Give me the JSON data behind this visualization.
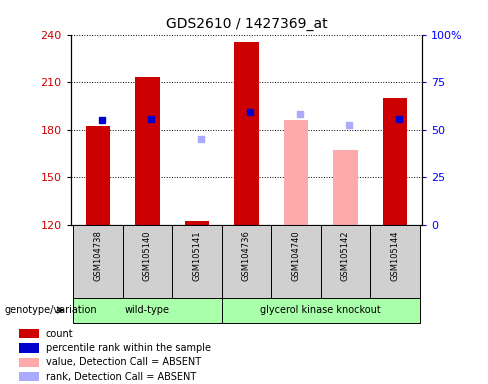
{
  "title": "GDS2610 / 1427369_at",
  "samples": [
    "GSM104738",
    "GSM105140",
    "GSM105141",
    "GSM104736",
    "GSM104740",
    "GSM105142",
    "GSM105144"
  ],
  "ylim_left": [
    120,
    240
  ],
  "ylim_right": [
    0,
    100
  ],
  "yticks_left": [
    120,
    150,
    180,
    210,
    240
  ],
  "yticks_right": [
    0,
    25,
    50,
    75,
    100
  ],
  "ytick_labels_right": [
    "0",
    "25",
    "50",
    "75",
    "100%"
  ],
  "count_values": [
    182,
    213,
    122,
    235,
    null,
    null,
    200
  ],
  "count_color": "#cc0000",
  "percentile_values": [
    186,
    187,
    null,
    191,
    null,
    null,
    187
  ],
  "percentile_color": "#0000cc",
  "absent_value_values": [
    null,
    null,
    null,
    null,
    186,
    167,
    null
  ],
  "absent_value_color": "#ffaaaa",
  "absent_rank_values": [
    null,
    null,
    174,
    null,
    190,
    183,
    null
  ],
  "absent_rank_color": "#aaaaff",
  "base_value": 120,
  "group_label": "genotype/variation",
  "group1_label": "wild-type",
  "group2_label": "glycerol kinase knockout",
  "group1_color": "#aaffaa",
  "group2_color": "#aaffaa",
  "sample_box_color": "#d0d0d0",
  "legend_items": [
    {
      "label": "count",
      "color": "#cc0000",
      "marker": "s"
    },
    {
      "label": "percentile rank within the sample",
      "color": "#0000cc",
      "marker": "s"
    },
    {
      "label": "value, Detection Call = ABSENT",
      "color": "#ffaaaa",
      "marker": "s"
    },
    {
      "label": "rank, Detection Call = ABSENT",
      "color": "#aaaaff",
      "marker": "s"
    }
  ]
}
